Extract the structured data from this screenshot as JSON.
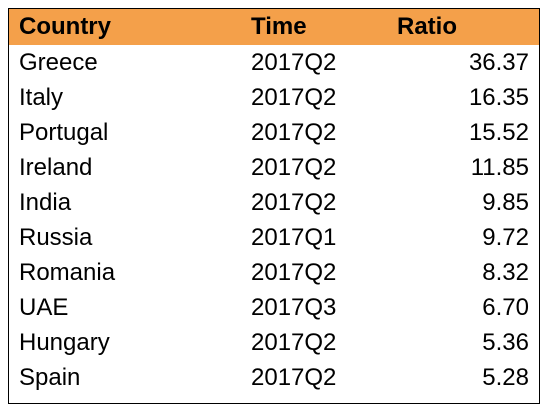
{
  "chart_data": {
    "type": "table",
    "columns": [
      "Country",
      "Time",
      "Ratio"
    ],
    "rows": [
      [
        "Greece",
        "2017Q2",
        "36.37"
      ],
      [
        "Italy",
        "2017Q2",
        "16.35"
      ],
      [
        "Portugal",
        "2017Q2",
        "15.52"
      ],
      [
        "Ireland",
        "2017Q2",
        "11.85"
      ],
      [
        "India",
        "2017Q2",
        "9.85"
      ],
      [
        "Russia",
        "2017Q1",
        "9.72"
      ],
      [
        "Romania",
        "2017Q2",
        "8.32"
      ],
      [
        "UAE",
        "2017Q3",
        "6.70"
      ],
      [
        "Hungary",
        "2017Q2",
        "5.36"
      ],
      [
        "Spain",
        "2017Q2",
        "5.28"
      ]
    ],
    "header_color": "#f4a04a",
    "border_color": "#000000"
  }
}
